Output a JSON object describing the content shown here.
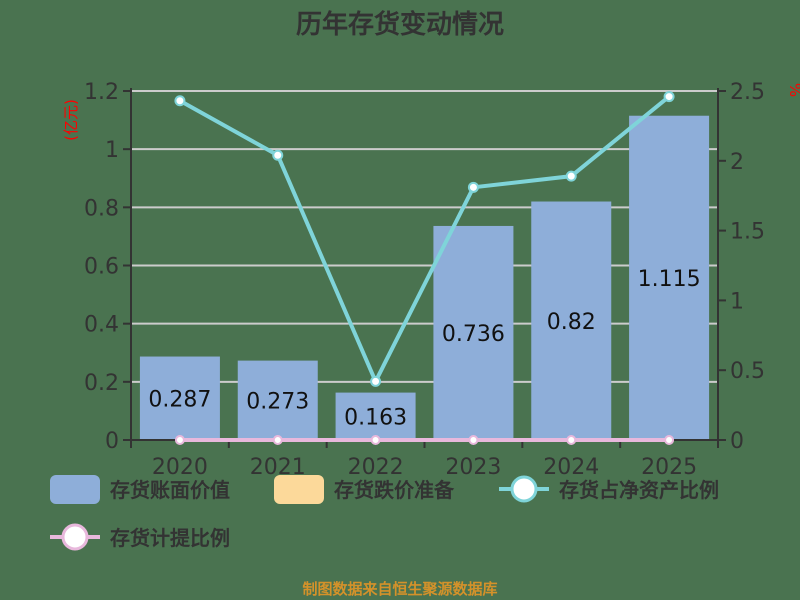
{
  "title": "历年存货变动情况",
  "footer": "制图数据来自恒生聚源数据库",
  "colors": {
    "background": "#4a7350",
    "bar": "#8eaed9",
    "provision": "#fcd99a",
    "ratio_line": "#7fd4d9",
    "provision_line": "#e8b8dc",
    "axis": "#333333",
    "grid": "#cccccc",
    "unit": "#ff0000",
    "footer": "#d4922a"
  },
  "left_axis": {
    "unit": "(亿元)",
    "ticks": [
      "0",
      "0.2",
      "0.4",
      "0.6",
      "0.8",
      "1",
      "1.2"
    ]
  },
  "right_axis": {
    "unit": "%",
    "ticks": [
      "0",
      "0.5",
      "1",
      "1.5",
      "2",
      "2.5"
    ]
  },
  "legend": [
    {
      "label": "存货账面价值",
      "type": "bar"
    },
    {
      "label": "存货跌价准备",
      "type": "bar"
    },
    {
      "label": "存货占净资产比例",
      "type": "line"
    },
    {
      "label": "存货计提比例",
      "type": "line"
    }
  ],
  "chart_data": {
    "type": "bar",
    "title": "历年存货变动情况",
    "categories": [
      "2020",
      "2021",
      "2022",
      "2023",
      "2024",
      "2025"
    ],
    "series": [
      {
        "name": "存货账面价值",
        "type": "bar",
        "axis": "left",
        "unit": "亿元",
        "values": [
          0.287,
          0.273,
          0.163,
          0.736,
          0.82,
          1.115
        ]
      },
      {
        "name": "存货跌价准备",
        "type": "bar",
        "axis": "left",
        "unit": "亿元",
        "values": [
          0,
          0,
          0,
          0,
          0,
          0
        ]
      },
      {
        "name": "存货占净资产比例",
        "type": "line",
        "axis": "right",
        "unit": "%",
        "values": [
          2.43,
          2.04,
          0.42,
          1.81,
          1.89,
          2.46
        ]
      },
      {
        "name": "存货计提比例",
        "type": "line",
        "axis": "right",
        "unit": "%",
        "values": [
          0,
          0,
          0,
          0,
          0,
          0
        ]
      }
    ],
    "ylabel": "(亿元)",
    "y2label": "%",
    "ylim": [
      0,
      1.2
    ],
    "y2lim": [
      0,
      2.5
    ],
    "grid": true,
    "legend_position": "bottom"
  }
}
